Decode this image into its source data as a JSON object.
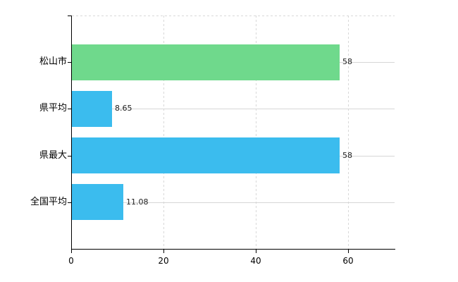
{
  "chart_data": {
    "type": "bar",
    "orientation": "horizontal",
    "categories": [
      "松山市",
      "県平均",
      "県最大",
      "全国平均"
    ],
    "values": [
      58,
      8.65,
      58,
      11.08
    ],
    "value_labels": [
      "58",
      "8.65",
      "58",
      "11.08"
    ],
    "bar_colors": [
      "#6fd98c",
      "#3bbcee",
      "#3bbcee",
      "#3bbcee"
    ],
    "x_ticks": [
      0,
      20,
      40,
      60
    ],
    "x_tick_labels": [
      "0",
      "20",
      "40",
      "60"
    ],
    "xlim": [
      0,
      70
    ],
    "grid": true,
    "legend_position": "none"
  },
  "colors": {
    "background": "#ffffff",
    "axis": "#000000",
    "gridline_solid": "#d6d6d6",
    "gridline_dashed": "#d8d8d8",
    "category_text": "#000000",
    "value_text": "#222222"
  }
}
